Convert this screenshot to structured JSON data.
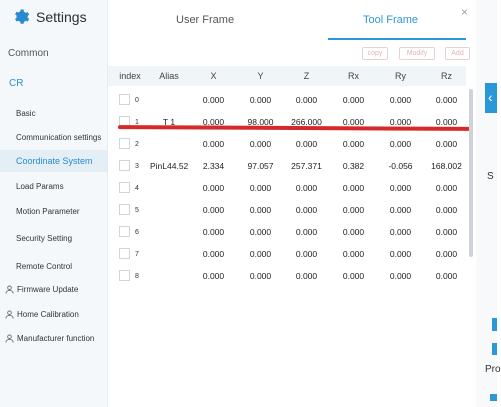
{
  "app": {
    "title": "Settings",
    "icon": "gear-icon"
  },
  "sidebar": {
    "common": "Common",
    "cr": "CR",
    "items": [
      {
        "label": "Basic"
      },
      {
        "label": "Communication settings"
      },
      {
        "label": "Coordinate System"
      },
      {
        "label": "Load Params"
      },
      {
        "label": "Motion Parameter"
      },
      {
        "label": "Security Setting"
      },
      {
        "label": "Remote Control"
      }
    ],
    "extra": [
      {
        "label": "Firmware Update",
        "icon": "person-icon"
      },
      {
        "label": "Home Calibration",
        "icon": "person-icon"
      },
      {
        "label": "Manufacturer function",
        "icon": "person-icon"
      }
    ]
  },
  "tabs": {
    "user": "User Frame",
    "tool": "Tool Frame",
    "active": "tool"
  },
  "close": "×",
  "actions": {
    "copy": "copy",
    "modify": "Modify",
    "add": "Add"
  },
  "table": {
    "headers": [
      "index",
      "Alias",
      "X",
      "Y",
      "Z",
      "Rx",
      "Ry",
      "Rz"
    ],
    "rows": [
      {
        "index": "0",
        "alias": "",
        "x": "0.000",
        "y": "0.000",
        "z": "0.000",
        "rx": "0.000",
        "ry": "0.000",
        "rz": "0.000"
      },
      {
        "index": "1",
        "alias": "T 1",
        "x": "0.000",
        "y": "98.000",
        "z": "266.000",
        "rx": "0.000",
        "ry": "0.000",
        "rz": "0.000"
      },
      {
        "index": "2",
        "alias": "",
        "x": "0.000",
        "y": "0.000",
        "z": "0.000",
        "rx": "0.000",
        "ry": "0.000",
        "rz": "0.000"
      },
      {
        "index": "3",
        "alias": "PinL44.52",
        "x": "2.334",
        "y": "97.057",
        "z": "257.371",
        "rx": "0.382",
        "ry": "-0.056",
        "rz": "168.002"
      },
      {
        "index": "4",
        "alias": "",
        "x": "0.000",
        "y": "0.000",
        "z": "0.000",
        "rx": "0.000",
        "ry": "0.000",
        "rz": "0.000"
      },
      {
        "index": "5",
        "alias": "",
        "x": "0.000",
        "y": "0.000",
        "z": "0.000",
        "rx": "0.000",
        "ry": "0.000",
        "rz": "0.000"
      },
      {
        "index": "6",
        "alias": "",
        "x": "0.000",
        "y": "0.000",
        "z": "0.000",
        "rx": "0.000",
        "ry": "0.000",
        "rz": "0.000"
      },
      {
        "index": "7",
        "alias": "",
        "x": "0.000",
        "y": "0.000",
        "z": "0.000",
        "rx": "0.000",
        "ry": "0.000",
        "rz": "0.000"
      },
      {
        "index": "8",
        "alias": "",
        "x": "0.000",
        "y": "0.000",
        "z": "0.000",
        "rx": "0.000",
        "ry": "0.000",
        "rz": "0.000"
      }
    ]
  },
  "right_panel": {
    "letter_s": "S",
    "pro": "Pro"
  },
  "colors": {
    "accent": "#2c97d9",
    "highlight_line": "#d7282a",
    "sidebar_bg": "#f4f8fa"
  }
}
